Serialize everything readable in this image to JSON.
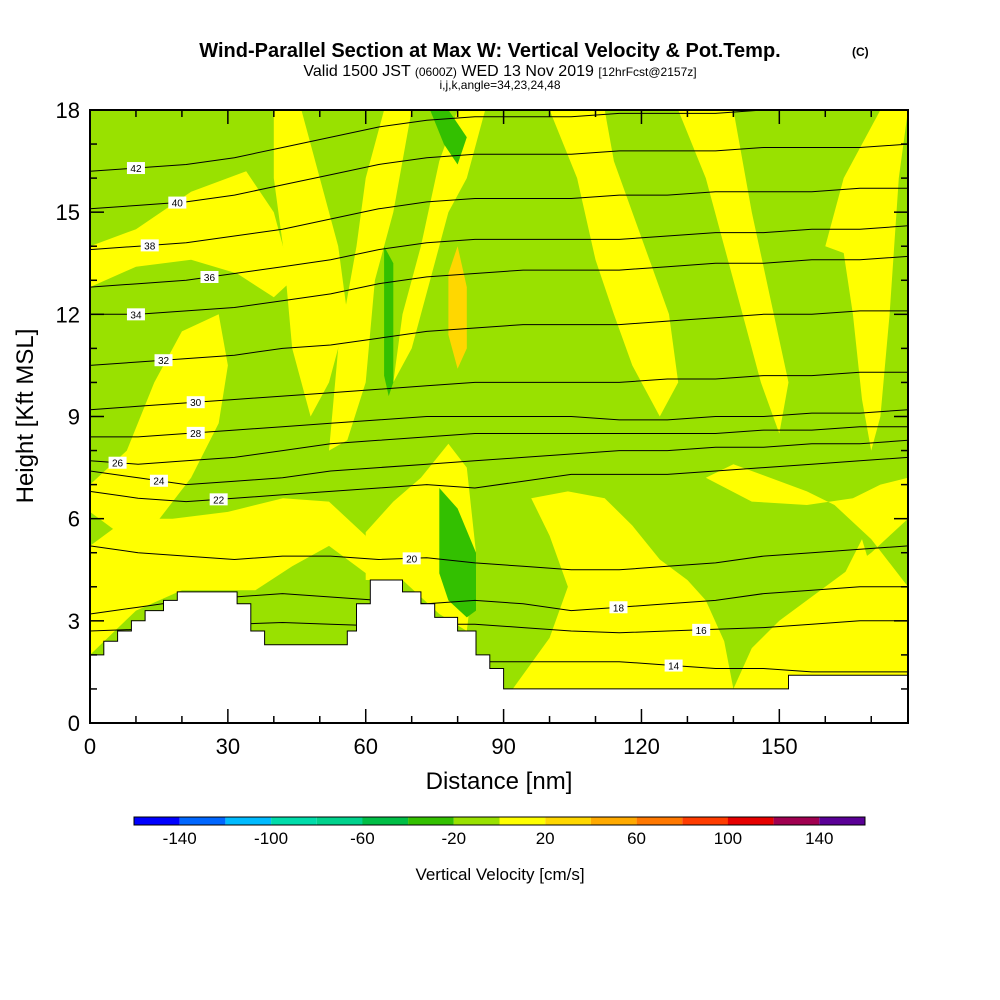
{
  "title": {
    "main": "Wind-Parallel Section at Max W: Vertical Velocity & Pot.Temp.",
    "copyright": "(C)",
    "valid_prefix": "Valid 1500 JST",
    "valid_z": "(0600Z)",
    "valid_date": "WED 13 Nov 2019",
    "forecast": "[12hrFcst@2157z]",
    "ijk": "i,j,k,angle=34,23,24,48"
  },
  "colors": {
    "yellow": "#ffff00",
    "yellow_green": "#99e100",
    "mid_green": "#33c000",
    "gold": "#ffd700",
    "terrain": "#ffffff",
    "contour": "#000000"
  },
  "chart_data": {
    "type": "heatmap",
    "xlabel": "Distance [nm]",
    "ylabel": "Height [Kft MSL]",
    "xlim": [
      0,
      178
    ],
    "ylim": [
      0,
      18
    ],
    "x_ticks": [
      0,
      30,
      60,
      90,
      120,
      150
    ],
    "y_ticks": [
      0,
      3,
      6,
      9,
      12,
      15,
      18
    ],
    "grid": false,
    "terrain": [
      [
        0,
        2.0
      ],
      [
        3,
        2.0
      ],
      [
        3,
        2.4
      ],
      [
        6,
        2.4
      ],
      [
        6,
        2.7
      ],
      [
        9,
        2.7
      ],
      [
        9,
        3.0
      ],
      [
        12,
        3.0
      ],
      [
        12,
        3.3
      ],
      [
        16,
        3.3
      ],
      [
        16,
        3.6
      ],
      [
        19,
        3.6
      ],
      [
        19,
        3.85
      ],
      [
        32,
        3.85
      ],
      [
        32,
        3.5
      ],
      [
        35,
        3.5
      ],
      [
        35,
        2.7
      ],
      [
        38,
        2.7
      ],
      [
        38,
        2.3
      ],
      [
        56,
        2.3
      ],
      [
        56,
        2.7
      ],
      [
        58,
        2.7
      ],
      [
        58,
        3.5
      ],
      [
        61,
        3.5
      ],
      [
        61,
        4.2
      ],
      [
        68,
        4.2
      ],
      [
        68,
        3.85
      ],
      [
        72,
        3.85
      ],
      [
        72,
        3.5
      ],
      [
        75,
        3.5
      ],
      [
        75,
        3.1
      ],
      [
        80,
        3.1
      ],
      [
        80,
        2.7
      ],
      [
        84,
        2.7
      ],
      [
        84,
        2.0
      ],
      [
        87,
        2.0
      ],
      [
        87,
        1.6
      ],
      [
        90,
        1.6
      ],
      [
        90,
        1.0
      ],
      [
        152,
        1.0
      ],
      [
        152,
        1.4
      ],
      [
        178,
        1.4
      ]
    ],
    "theta_contours": [
      {
        "theta": 14,
        "label_x": 127,
        "y": [
          1.2,
          1.4,
          1.7,
          2.0,
          2.1,
          2.0,
          1.9,
          1.8,
          1.8,
          1.8,
          1.8,
          1.8,
          1.7,
          1.6,
          1.6,
          1.5,
          1.5,
          1.5
        ]
      },
      {
        "theta": 16,
        "label_x": 133,
        "y": [
          2.7,
          2.75,
          2.85,
          2.9,
          2.95,
          2.9,
          2.85,
          2.9,
          2.9,
          2.8,
          2.7,
          2.65,
          2.7,
          2.75,
          2.8,
          2.9,
          3.0,
          3.0
        ]
      },
      {
        "theta": 18,
        "label_x": 115,
        "y": [
          3.2,
          3.4,
          3.6,
          3.7,
          3.8,
          3.7,
          3.6,
          3.5,
          3.6,
          3.5,
          3.3,
          3.4,
          3.5,
          3.6,
          3.8,
          3.9,
          4.0,
          4.0
        ]
      },
      {
        "theta": 20,
        "label_x": 70,
        "y": [
          5.2,
          5.0,
          4.9,
          4.8,
          4.9,
          4.9,
          4.8,
          4.85,
          4.7,
          4.6,
          4.5,
          4.5,
          4.6,
          4.7,
          4.9,
          5.0,
          5.1,
          5.2
        ]
      },
      {
        "theta": 22,
        "label_x": 28,
        "y": [
          6.8,
          6.6,
          6.5,
          6.6,
          6.7,
          6.8,
          6.9,
          7.0,
          6.9,
          7.1,
          7.3,
          7.3,
          7.3,
          7.4,
          7.5,
          7.6,
          7.7,
          7.8
        ]
      },
      {
        "theta": 24,
        "label_x": 15,
        "y": [
          7.4,
          7.2,
          7.0,
          7.1,
          7.2,
          7.4,
          7.5,
          7.6,
          7.7,
          7.8,
          7.9,
          8.0,
          8.0,
          8.1,
          8.1,
          8.2,
          8.2,
          8.3
        ]
      },
      {
        "theta": 26,
        "label_x": 6,
        "y": [
          7.7,
          7.6,
          7.7,
          7.8,
          8.0,
          8.2,
          8.3,
          8.4,
          8.5,
          8.5,
          8.5,
          8.5,
          8.5,
          8.5,
          8.6,
          8.6,
          8.7,
          8.7
        ]
      },
      {
        "theta": 28,
        "label_x": 23,
        "y": [
          8.4,
          8.4,
          8.5,
          8.6,
          8.7,
          8.8,
          8.9,
          9.0,
          9.0,
          9.0,
          9.0,
          8.9,
          8.9,
          9.0,
          9.0,
          9.1,
          9.1,
          9.2
        ]
      },
      {
        "theta": 30,
        "label_x": 23,
        "y": [
          9.2,
          9.3,
          9.4,
          9.5,
          9.6,
          9.7,
          9.8,
          9.9,
          10.0,
          10.0,
          10.0,
          10.0,
          10.1,
          10.1,
          10.2,
          10.2,
          10.3,
          10.3
        ]
      },
      {
        "theta": 32,
        "label_x": 16,
        "y": [
          10.5,
          10.6,
          10.7,
          10.8,
          11.0,
          11.1,
          11.3,
          11.5,
          11.6,
          11.7,
          11.7,
          11.7,
          11.8,
          11.9,
          12.0,
          12.0,
          12.1,
          12.1
        ]
      },
      {
        "theta": 34,
        "label_x": 10,
        "y": [
          12.0,
          12.0,
          12.1,
          12.2,
          12.4,
          12.6,
          12.9,
          13.1,
          13.2,
          13.3,
          13.3,
          13.3,
          13.4,
          13.5,
          13.5,
          13.6,
          13.6,
          13.7
        ]
      },
      {
        "theta": 36,
        "label_x": 26,
        "y": [
          12.8,
          12.9,
          13.0,
          13.2,
          13.4,
          13.6,
          13.9,
          14.1,
          14.2,
          14.2,
          14.2,
          14.2,
          14.3,
          14.4,
          14.4,
          14.5,
          14.5,
          14.6
        ]
      },
      {
        "theta": 38,
        "label_x": 13,
        "y": [
          13.9,
          14.0,
          14.1,
          14.3,
          14.5,
          14.8,
          15.1,
          15.3,
          15.4,
          15.4,
          15.4,
          15.5,
          15.5,
          15.6,
          15.6,
          15.6,
          15.7,
          15.7
        ]
      },
      {
        "theta": 40,
        "label_x": 19,
        "y": [
          15.1,
          15.2,
          15.3,
          15.5,
          15.8,
          16.1,
          16.4,
          16.6,
          16.7,
          16.7,
          16.7,
          16.8,
          16.8,
          16.8,
          16.9,
          16.9,
          16.9,
          17.0
        ]
      },
      {
        "theta": 42,
        "label_x": 10,
        "y": [
          16.2,
          16.3,
          16.4,
          16.6,
          16.9,
          17.2,
          17.5,
          17.7,
          17.8,
          17.8,
          17.8,
          17.9,
          17.9,
          17.9,
          18.0,
          18.0,
          18.0,
          18.0
        ]
      }
    ],
    "colorbar": {
      "label": "Vertical Velocity [cm/s]",
      "tick_values": [
        -140,
        -100,
        -60,
        -20,
        20,
        60,
        100,
        140
      ],
      "tick_labels": [
        "-140",
        "-100",
        "-60",
        "-20",
        "20",
        "60",
        "100",
        "140"
      ],
      "boundaries": [
        -160,
        -140,
        -120,
        -100,
        -80,
        -60,
        -40,
        -20,
        0,
        20,
        40,
        60,
        80,
        100,
        120,
        140,
        160
      ],
      "colors": [
        "#0000ff",
        "#0066ff",
        "#00bbff",
        "#00dcaa",
        "#00d28c",
        "#00be46",
        "#33c000",
        "#99e100",
        "#ffff00",
        "#ffd700",
        "#ffaa00",
        "#ff7800",
        "#ff3c00",
        "#e60000",
        "#a00050",
        "#5a0096"
      ]
    }
  }
}
